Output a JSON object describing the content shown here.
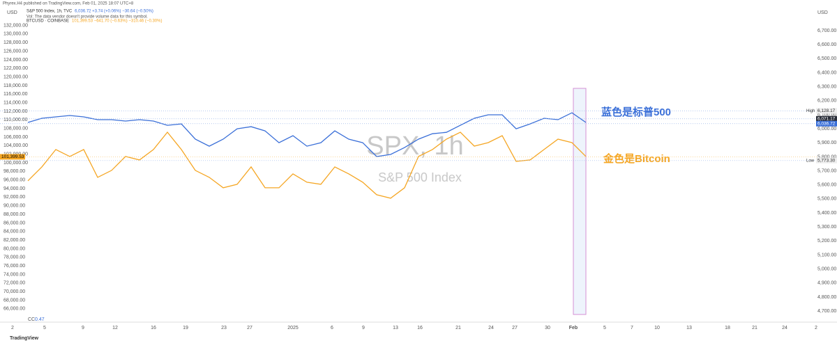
{
  "chart_data": {
    "type": "line",
    "publisher": "Phyrex.H4 published on TradingView.com, Feb 01, 2025 18:07 UTC+8",
    "axis_unit": "USD",
    "watermark": "SPX, 1h",
    "watermark_sub": "S&P 500 Index",
    "vol_note": "Vol: The data vendor doesn't provide volume data for this symbol.",
    "annotations": [
      "蓝色是标普500",
      "金色是Bitcoin"
    ],
    "cc_label": "CC",
    "cc_value": "0.47",
    "footer": "TradingView",
    "grid": false,
    "x": [
      0,
      1,
      2,
      3,
      4,
      5,
      6,
      7,
      8,
      9,
      10,
      11,
      12,
      13,
      14,
      15,
      16,
      17,
      18,
      19,
      20,
      21,
      22,
      23,
      24,
      25,
      26,
      27,
      28,
      29,
      30,
      31,
      32,
      33,
      34,
      35,
      36,
      37,
      38,
      39,
      40
    ],
    "xlim": [
      -2,
      56.6
    ],
    "xticks": [
      {
        "value": -1.1,
        "label": "2"
      },
      {
        "value": 1.2,
        "label": "5"
      },
      {
        "value": 3.95,
        "label": "9"
      },
      {
        "value": 6.25,
        "label": "12"
      },
      {
        "value": 9,
        "label": "16"
      },
      {
        "value": 11.3,
        "label": "19"
      },
      {
        "value": 14.05,
        "label": "23"
      },
      {
        "value": 15.9,
        "label": "27"
      },
      {
        "value": 19,
        "label": "2025"
      },
      {
        "value": 21.8,
        "label": "6"
      },
      {
        "value": 24.05,
        "label": "9"
      },
      {
        "value": 26.35,
        "label": "13"
      },
      {
        "value": 28.1,
        "label": "16"
      },
      {
        "value": 30.85,
        "label": "21"
      },
      {
        "value": 33.2,
        "label": "24"
      },
      {
        "value": 34.9,
        "label": "27"
      },
      {
        "value": 37.25,
        "label": "30"
      },
      {
        "value": 39.1,
        "label": "Feb"
      },
      {
        "value": 41.35,
        "label": "5"
      },
      {
        "value": 43.3,
        "label": "7"
      },
      {
        "value": 45.1,
        "label": "10"
      },
      {
        "value": 47.4,
        "label": "13"
      },
      {
        "value": 50.15,
        "label": "18"
      },
      {
        "value": 52.1,
        "label": "21"
      },
      {
        "value": 54.25,
        "label": "24"
      },
      {
        "value": 56.5,
        "label": "2"
      }
    ],
    "ylim": [
      62900,
      136300
    ],
    "yticks": [
      {
        "value": 66000,
        "label": "66,000.00"
      },
      {
        "value": 68000,
        "label": "68,000.00"
      },
      {
        "value": 70000,
        "label": "70,000.00"
      },
      {
        "value": 72000,
        "label": "72,000.00"
      },
      {
        "value": 74000,
        "label": "74,000.00"
      },
      {
        "value": 76000,
        "label": "76,000.00"
      },
      {
        "value": 78000,
        "label": "78,000.00"
      },
      {
        "value": 80000,
        "label": "80,000.00"
      },
      {
        "value": 82000,
        "label": "82,000.00"
      },
      {
        "value": 84000,
        "label": "84,000.00"
      },
      {
        "value": 86000,
        "label": "86,000.00"
      },
      {
        "value": 88000,
        "label": "88,000.00"
      },
      {
        "value": 90000,
        "label": "90,000.00"
      },
      {
        "value": 92000,
        "label": "92,000.00"
      },
      {
        "value": 94000,
        "label": "94,000.00"
      },
      {
        "value": 96000,
        "label": "96,000.00"
      },
      {
        "value": 98000,
        "label": "98,000.00"
      },
      {
        "value": 100000,
        "label": "100,000.00"
      },
      {
        "value": 102000,
        "label": "102,000.00"
      },
      {
        "value": 104000,
        "label": "104,000.00"
      },
      {
        "value": 106000,
        "label": "106,000.00"
      },
      {
        "value": 108000,
        "label": "108,000.00"
      },
      {
        "value": 110000,
        "label": "110,000.00"
      },
      {
        "value": 112000,
        "label": "112,000.00"
      },
      {
        "value": 114000,
        "label": "114,000.00"
      },
      {
        "value": 116000,
        "label": "116,000.00"
      },
      {
        "value": 118000,
        "label": "118,000.00"
      },
      {
        "value": 120000,
        "label": "120,000.00"
      },
      {
        "value": 122000,
        "label": "122,000.00"
      },
      {
        "value": 124000,
        "label": "124,000.00"
      },
      {
        "value": 126000,
        "label": "126,000.00"
      },
      {
        "value": 128000,
        "label": "128,000.00"
      },
      {
        "value": 130000,
        "label": "130,000.00"
      },
      {
        "value": 132000,
        "label": "132,000.00"
      }
    ],
    "y2lim": [
      4621,
      6869
    ],
    "y2ticks": [
      {
        "value": 4700,
        "label": "4,700.00"
      },
      {
        "value": 4800,
        "label": "4,800.00"
      },
      {
        "value": 4900,
        "label": "4,900.00"
      },
      {
        "value": 5000,
        "label": "5,000.00"
      },
      {
        "value": 5100,
        "label": "5,100.00"
      },
      {
        "value": 5200,
        "label": "5,200.00"
      },
      {
        "value": 5300,
        "label": "5,300.00"
      },
      {
        "value": 5400,
        "label": "5,400.00"
      },
      {
        "value": 5500,
        "label": "5,500.00"
      },
      {
        "value": 5600,
        "label": "5,600.00"
      },
      {
        "value": 5700,
        "label": "5,700.00"
      },
      {
        "value": 5800,
        "label": "5,800.00"
      },
      {
        "value": 5900,
        "label": "5,900.00"
      },
      {
        "value": 6000,
        "label": "6,000.00"
      },
      {
        "value": 6100,
        "label": "6,100.00"
      },
      {
        "value": 6200,
        "label": "6,200.00"
      },
      {
        "value": 6300,
        "label": "6,300.00"
      },
      {
        "value": 6400,
        "label": "6,400.00"
      },
      {
        "value": 6500,
        "label": "6,500.00"
      },
      {
        "value": 6600,
        "label": "6,600.00"
      },
      {
        "value": 6700,
        "label": "6,700.00"
      }
    ],
    "series": [
      {
        "name": "S&P 500 Index, 1h, TVC",
        "quote": "6,036.72  +3.74 (+0.06%)  −30.64 (−0.50%)",
        "color": "#3a6fd8",
        "axis": "y2",
        "values": [
          6045,
          6075,
          6085,
          6095,
          6085,
          6065,
          6065,
          6055,
          6065,
          6055,
          6025,
          6035,
          5926,
          5876,
          5926,
          6000,
          6015,
          5985,
          5901,
          5951,
          5876,
          5901,
          5985,
          5926,
          5901,
          5802,
          5817,
          5866,
          5926,
          5965,
          5975,
          6025,
          6075,
          6100,
          6100,
          6000,
          6035,
          6075,
          6065,
          6114,
          6045
        ]
      },
      {
        "name": "BTCUSD · COINBASE",
        "quote": "101,399.53  −641.70 (−0.63%)  −310.46 (−0.30%)",
        "color": "#f5a623",
        "values": [
          95810,
          99050,
          103100,
          101480,
          103100,
          96620,
          98240,
          101480,
          100670,
          103100,
          107140,
          103100,
          98240,
          96620,
          94190,
          95000,
          99050,
          94190,
          94190,
          97430,
          95490,
          95000,
          99050,
          97430,
          95490,
          92570,
          91760,
          94190,
          101480,
          103100,
          105520,
          107140,
          103900,
          104710,
          106330,
          100340,
          100670,
          103100,
          105520,
          104710,
          101480
        ]
      }
    ],
    "price_labels": [
      {
        "tag": "High",
        "value": 6128.17,
        "label": "6,128.17",
        "axis": "y2"
      },
      {
        "value": 6071.17,
        "label": "6,071.17",
        "axis": "y2"
      },
      {
        "value": 6036.72,
        "label": "6,036.72",
        "axis": "y2"
      },
      {
        "tag": "Low",
        "value": 5773.3,
        "label": "5,773.30",
        "axis": "y2"
      },
      {
        "value": 101399.53,
        "label": "101,399.53",
        "axis": "y"
      }
    ]
  }
}
